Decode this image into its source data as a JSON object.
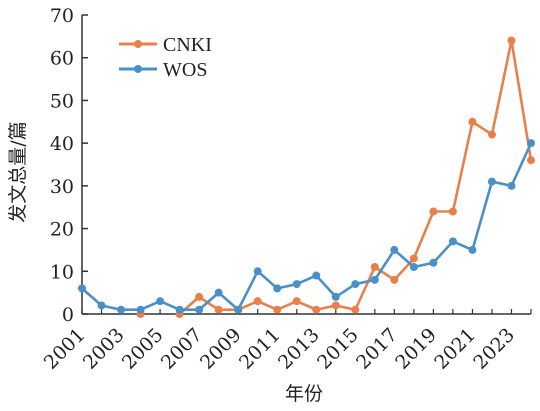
{
  "chart_data": {
    "type": "line",
    "xlabel": "年份",
    "ylabel": "发文总量/篇",
    "ylim": [
      0,
      70
    ],
    "yticks": [
      0,
      10,
      20,
      30,
      40,
      50,
      60,
      70
    ],
    "xlim": [
      2001,
      2024
    ],
    "xticks": [
      2001,
      2003,
      2005,
      2007,
      2009,
      2011,
      2013,
      2015,
      2017,
      2019,
      2021,
      2023
    ],
    "grid": false,
    "legend_position": "top-left",
    "x": [
      2001,
      2002,
      2003,
      2004,
      2005,
      2006,
      2007,
      2008,
      2009,
      2010,
      2011,
      2012,
      2013,
      2014,
      2015,
      2016,
      2017,
      2018,
      2019,
      2020,
      2021,
      2022,
      2023,
      2024
    ],
    "series": [
      {
        "name": "CNKI",
        "color": "#E8804A",
        "values": [
          null,
          null,
          null,
          0,
          null,
          0,
          4,
          1,
          1,
          3,
          1,
          3,
          1,
          2,
          1,
          11,
          8,
          13,
          24,
          24,
          45,
          42,
          64,
          36
        ]
      },
      {
        "name": "WOS",
        "color": "#4A90C8",
        "values": [
          6,
          2,
          1,
          1,
          3,
          1,
          1,
          5,
          1,
          10,
          6,
          7,
          9,
          4,
          7,
          8,
          15,
          11,
          12,
          17,
          15,
          31,
          30,
          40
        ]
      }
    ]
  }
}
